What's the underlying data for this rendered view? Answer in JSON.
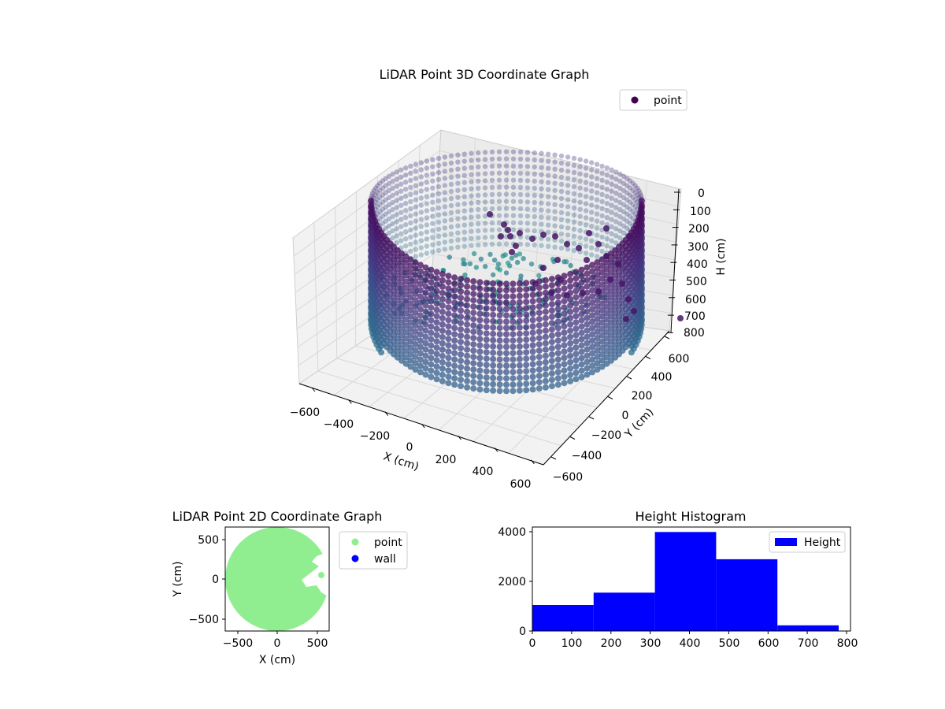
{
  "chart_data": [
    {
      "type": "scatter",
      "projection": "3d",
      "title": "LiDAR Point 3D Coordinate Graph",
      "xlabel": "X (cm)",
      "ylabel": "Y (cm)",
      "zlabel": "H (cm)",
      "xticks": [
        "−600",
        "−400",
        "−200",
        "0",
        "200",
        "400",
        "600"
      ],
      "yticks": [
        "−600",
        "−400",
        "−200",
        "0",
        "200",
        "400",
        "600"
      ],
      "zticks": [
        "0",
        "100",
        "200",
        "300",
        "400",
        "500",
        "600",
        "700",
        "800"
      ],
      "xlim": [
        -650,
        650
      ],
      "ylim": [
        -650,
        650
      ],
      "zlim": [
        0,
        800
      ],
      "z_inverted": true,
      "colormap": "viridis",
      "legend": {
        "entries": [
          {
            "label": "point",
            "color": "#440154"
          }
        ],
        "placement": "top-right"
      },
      "grid": true,
      "series_description": "cylindrical wall of points of radius ~650 cm spanning H 0–800, with a dense floor cluster and scattered interior points"
    },
    {
      "type": "scatter",
      "title": "LiDAR Point 2D Coordinate Graph",
      "xlabel": "X (cm)",
      "ylabel": "Y (cm)",
      "xticks": [
        "−500",
        "0",
        "500"
      ],
      "yticks": [
        "−500",
        "0",
        "500"
      ],
      "xlim": [
        -650,
        650
      ],
      "ylim": [
        -650,
        650
      ],
      "series": [
        {
          "name": "point",
          "color": "#90ee90",
          "shape": "filled disc radius ~650 centred at origin with small notches on the right side"
        },
        {
          "name": "wall",
          "color": "#0000ff"
        }
      ],
      "legend": {
        "placement": "outside-right"
      }
    },
    {
      "type": "bar",
      "title": "Height Histogram",
      "xticks": [
        "0",
        "100",
        "200",
        "300",
        "400",
        "500",
        "600",
        "700",
        "800"
      ],
      "yticks": [
        "0",
        "2000",
        "4000"
      ],
      "xlim": [
        0,
        810
      ],
      "ylim": [
        0,
        4200
      ],
      "bins": [
        {
          "x0": 0,
          "x1": 156,
          "value": 1050
        },
        {
          "x0": 156,
          "x1": 312,
          "value": 1550
        },
        {
          "x0": 312,
          "x1": 468,
          "value": 4000
        },
        {
          "x0": 468,
          "x1": 624,
          "value": 2900
        },
        {
          "x0": 624,
          "x1": 780,
          "value": 230
        }
      ],
      "series": [
        {
          "name": "Height",
          "color": "#0000ff"
        }
      ],
      "legend": {
        "placement": "top-right"
      }
    }
  ]
}
